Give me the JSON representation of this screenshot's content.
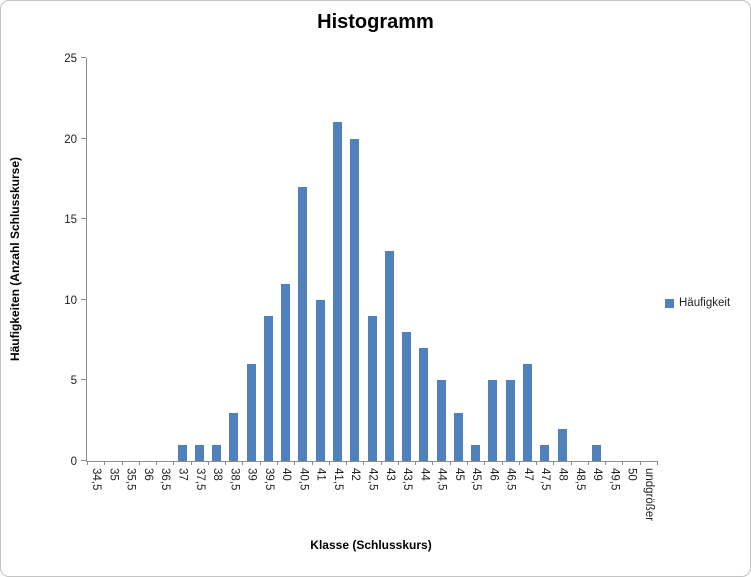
{
  "window": {
    "background": "#ffffff",
    "border_color": "#c3c3c3"
  },
  "chart_data": {
    "type": "bar",
    "title": "Histogramm",
    "xlabel": "Klasse (Schlusskurs)",
    "ylabel": "Häufigkeiten (Anzahl Schlusskurse)",
    "series_name": "Häufigkeit",
    "categories": [
      "34,5",
      "35",
      "35,5",
      "36",
      "36,5",
      "37",
      "37,5",
      "38",
      "38,5",
      "39",
      "39,5",
      "40",
      "40,5",
      "41",
      "41,5",
      "42",
      "42,5",
      "43",
      "43,5",
      "44",
      "44,5",
      "45",
      "45,5",
      "46",
      "46,5",
      "47",
      "47,5",
      "48",
      "48,5",
      "49",
      "49,5",
      "50",
      "undgrößer"
    ],
    "values": [
      0,
      0,
      0,
      0,
      0,
      1,
      1,
      1,
      3,
      6,
      9,
      11,
      17,
      10,
      21,
      20,
      9,
      13,
      8,
      7,
      5,
      3,
      1,
      5,
      5,
      6,
      1,
      2,
      0,
      1,
      0,
      0,
      0
    ],
    "ylim": [
      0,
      25
    ],
    "yticks": [
      0,
      5,
      10,
      15,
      20,
      25
    ],
    "bar_color": "#4f81bd",
    "axis_color": "#8c8c8c",
    "grid": false,
    "legend_position": "right"
  }
}
